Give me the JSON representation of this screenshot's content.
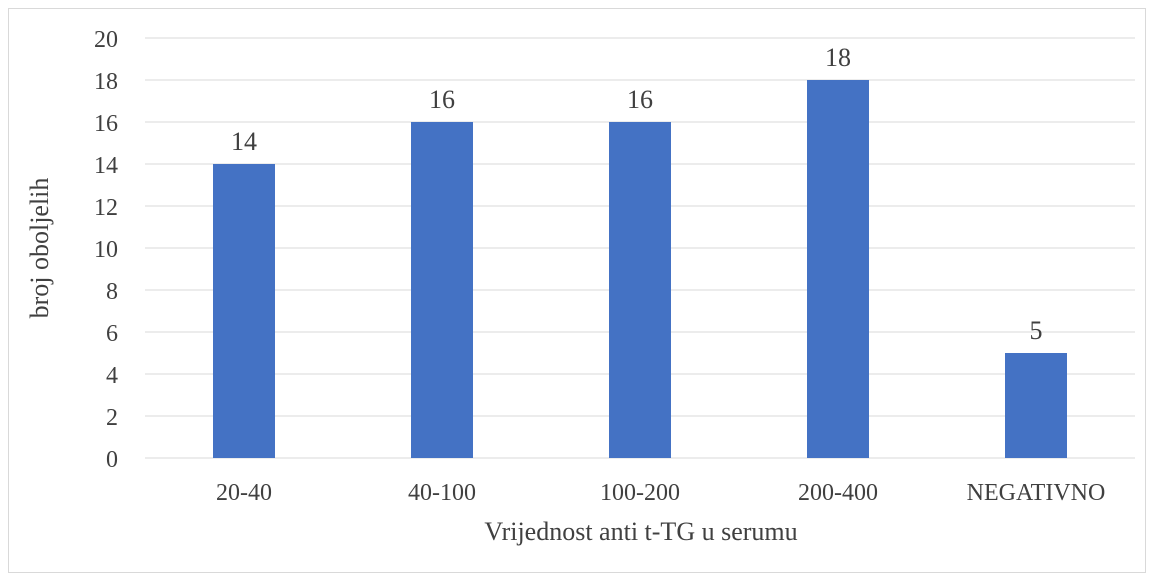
{
  "chart_data": {
    "type": "bar",
    "title": "",
    "xlabel": "Vrijednost anti t-TG u serumu",
    "ylabel": "broj  oboljelih",
    "categories": [
      "20-40",
      "40-100",
      "100-200",
      "200-400",
      "NEGATIVNO"
    ],
    "values": [
      14,
      16,
      16,
      18,
      5
    ],
    "data_labels": [
      "14",
      "16",
      "16",
      "18",
      "5"
    ],
    "ylim": [
      0,
      20
    ],
    "yticks": [
      0,
      2,
      4,
      6,
      8,
      10,
      12,
      14,
      16,
      18,
      20
    ],
    "grid": true,
    "legend": "none",
    "bar_color": "#4472c4",
    "grid_color": "#d9d9d9"
  }
}
